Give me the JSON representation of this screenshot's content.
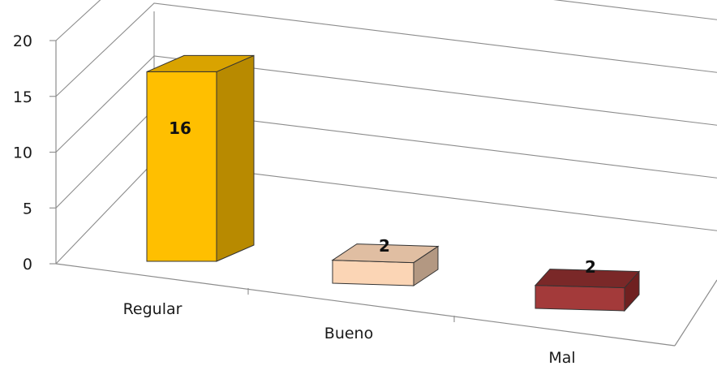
{
  "chart_data": {
    "type": "bar",
    "categories": [
      "Regular",
      "Bueno",
      "Mal"
    ],
    "values": [
      16,
      2,
      2
    ],
    "data_labels": [
      "16",
      "2",
      "2"
    ],
    "y_ticks": [
      "0",
      "5",
      "10",
      "15",
      "20"
    ],
    "ylim": [
      0,
      20
    ],
    "grid": true,
    "legend": "none",
    "colors": [
      {
        "front": "#ffbf00",
        "side": "#b88a00",
        "top": "#d9a300"
      },
      {
        "front": "#fbd5b5",
        "side": "#b39882",
        "top": "#e0bea2"
      },
      {
        "front": "#a33a3a",
        "side": "#6f2020",
        "top": "#7a2828"
      }
    ]
  }
}
